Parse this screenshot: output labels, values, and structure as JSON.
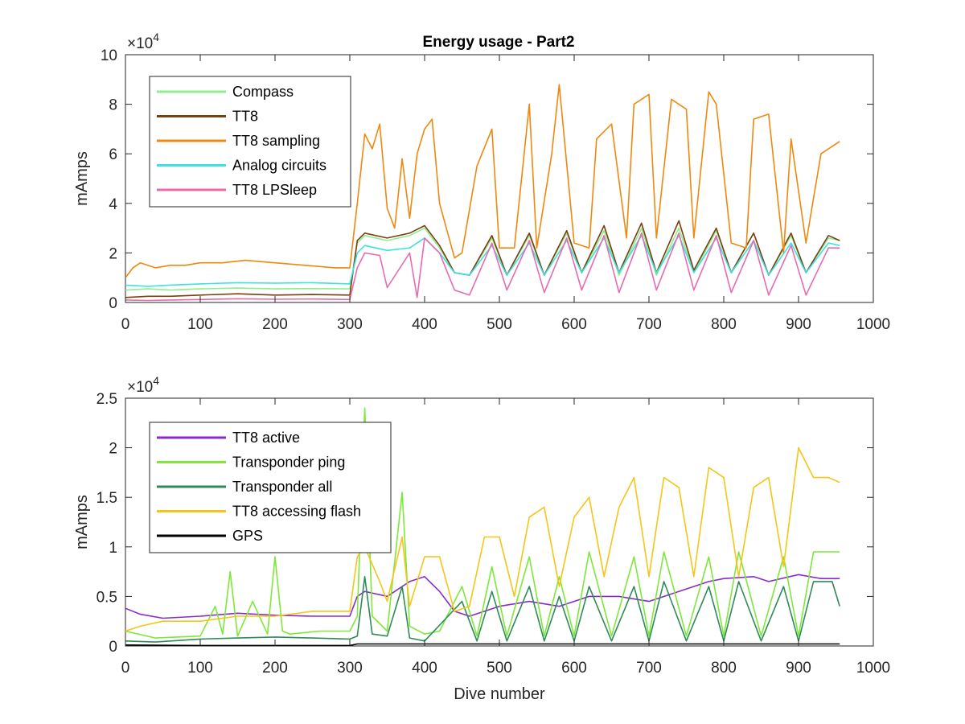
{
  "figure": {
    "title": "Energy usage - Part2"
  },
  "chart_data": [
    {
      "type": "line",
      "title": "Energy usage - Part2",
      "xlabel": "",
      "ylabel": "mAmps",
      "xlim": [
        0,
        1000
      ],
      "ylim": [
        0,
        100000
      ],
      "xticks": [
        0,
        100,
        200,
        300,
        400,
        500,
        600,
        700,
        800,
        900,
        1000
      ],
      "xtick_labels": [
        "0",
        "100",
        "200",
        "300",
        "400",
        "500",
        "600",
        "700",
        "800",
        "900",
        "1000"
      ],
      "yticks": [
        0,
        20000,
        40000,
        60000,
        80000,
        100000
      ],
      "ytick_labels": [
        "0",
        "2",
        "4",
        "6",
        "8",
        "10"
      ],
      "y_multiplier": "×10^4",
      "legend_position": "top-left",
      "grid": false,
      "series": [
        {
          "name": "Compass",
          "color": "#90ee90",
          "x": [
            0,
            30,
            60,
            100,
            150,
            200,
            250,
            300,
            310,
            320,
            350,
            380,
            400,
            420,
            440,
            460,
            490,
            510,
            540,
            560,
            590,
            610,
            640,
            660,
            690,
            710,
            740,
            760,
            790,
            810,
            840,
            860,
            890,
            910,
            940,
            955
          ],
          "values": [
            5000,
            5500,
            5000,
            5500,
            5800,
            5500,
            5600,
            5500,
            24000,
            27000,
            25000,
            27000,
            30000,
            22000,
            12000,
            11000,
            26000,
            11000,
            27000,
            11000,
            28000,
            12000,
            29000,
            11000,
            30000,
            11000,
            30000,
            12000,
            29000,
            12000,
            28000,
            11000,
            27000,
            12000,
            26000,
            25000
          ]
        },
        {
          "name": "TT8",
          "color": "#7b3f0d",
          "x": [
            0,
            30,
            60,
            100,
            150,
            200,
            250,
            300,
            310,
            320,
            350,
            380,
            400,
            420,
            440,
            460,
            490,
            510,
            540,
            560,
            590,
            610,
            640,
            660,
            690,
            710,
            740,
            760,
            790,
            810,
            840,
            860,
            890,
            910,
            940,
            955
          ],
          "values": [
            2000,
            2500,
            2500,
            3000,
            3500,
            3000,
            3200,
            3000,
            25000,
            28000,
            26000,
            28000,
            31000,
            23000,
            12000,
            11000,
            27000,
            11000,
            28000,
            11000,
            29000,
            12000,
            31000,
            12000,
            32000,
            12000,
            33000,
            13000,
            30000,
            12000,
            28000,
            11000,
            28000,
            12000,
            27000,
            25000
          ]
        },
        {
          "name": "TT8 sampling",
          "color": "#f0870f",
          "x": [
            0,
            10,
            20,
            40,
            60,
            80,
            100,
            130,
            160,
            200,
            240,
            280,
            300,
            310,
            320,
            330,
            340,
            350,
            360,
            370,
            380,
            390,
            400,
            410,
            420,
            440,
            450,
            470,
            490,
            500,
            520,
            540,
            550,
            570,
            580,
            600,
            620,
            630,
            650,
            670,
            680,
            700,
            710,
            730,
            750,
            760,
            780,
            790,
            810,
            830,
            840,
            860,
            880,
            890,
            910,
            930,
            940,
            955
          ],
          "values": [
            10000,
            14000,
            16000,
            14000,
            15000,
            15000,
            16000,
            16000,
            17000,
            16000,
            15000,
            14000,
            14000,
            40000,
            68000,
            62000,
            72000,
            38000,
            30000,
            58000,
            34000,
            60000,
            70000,
            74000,
            40000,
            18000,
            20000,
            55000,
            70000,
            22000,
            22000,
            80000,
            22000,
            60000,
            88000,
            24000,
            22000,
            66000,
            72000,
            26000,
            80000,
            84000,
            26000,
            82000,
            78000,
            26000,
            85000,
            80000,
            24000,
            22000,
            74000,
            76000,
            20000,
            66000,
            24000,
            60000,
            62000,
            65000
          ]
        },
        {
          "name": "Analog circuits",
          "color": "#3ee0e0",
          "x": [
            0,
            30,
            60,
            100,
            150,
            200,
            250,
            300,
            310,
            320,
            350,
            380,
            400,
            420,
            440,
            460,
            490,
            510,
            540,
            560,
            590,
            610,
            640,
            660,
            690,
            710,
            740,
            760,
            790,
            810,
            840,
            860,
            890,
            910,
            940,
            955
          ],
          "values": [
            7000,
            6500,
            7000,
            7500,
            8000,
            7800,
            8000,
            7500,
            20000,
            23000,
            21000,
            22000,
            26000,
            20000,
            12000,
            11000,
            23000,
            11000,
            24000,
            11000,
            25000,
            12000,
            26000,
            12000,
            27000,
            12000,
            27000,
            12000,
            26000,
            12000,
            25000,
            11000,
            24000,
            12000,
            24000,
            23000
          ]
        },
        {
          "name": "TT8 LPSleep",
          "color": "#e86bb0",
          "x": [
            0,
            30,
            60,
            100,
            150,
            200,
            250,
            300,
            310,
            320,
            340,
            350,
            380,
            390,
            400,
            420,
            440,
            460,
            490,
            510,
            540,
            560,
            590,
            610,
            640,
            660,
            690,
            710,
            740,
            760,
            790,
            810,
            840,
            860,
            890,
            910,
            940,
            955
          ],
          "values": [
            1000,
            800,
            1000,
            1200,
            1500,
            1300,
            1400,
            1200,
            14000,
            20000,
            19000,
            6000,
            20000,
            2000,
            26000,
            20000,
            5000,
            3000,
            24000,
            5000,
            25000,
            4000,
            26000,
            5000,
            27000,
            4000,
            28000,
            5000,
            28000,
            5000,
            27000,
            4000,
            25000,
            3000,
            23000,
            3000,
            22000,
            22000
          ]
        }
      ]
    },
    {
      "type": "line",
      "title": "",
      "xlabel": "Dive number",
      "ylabel": "mAmps",
      "xlim": [
        0,
        1000
      ],
      "ylim": [
        0,
        25000
      ],
      "xticks": [
        0,
        100,
        200,
        300,
        400,
        500,
        600,
        700,
        800,
        900,
        1000
      ],
      "xtick_labels": [
        "0",
        "100",
        "200",
        "300",
        "400",
        "500",
        "600",
        "700",
        "800",
        "900",
        "1000"
      ],
      "yticks": [
        0,
        5000,
        10000,
        15000,
        20000,
        25000
      ],
      "ytick_labels": [
        "0",
        "0.5",
        "1",
        "1.5",
        "2",
        "2.5"
      ],
      "y_multiplier": "×10^4",
      "legend_position": "top-left",
      "grid": false,
      "series": [
        {
          "name": "TT8 active",
          "color": "#8a2bc8",
          "x": [
            0,
            20,
            50,
            100,
            150,
            200,
            250,
            300,
            310,
            320,
            350,
            380,
            400,
            420,
            440,
            460,
            500,
            540,
            580,
            620,
            660,
            700,
            740,
            780,
            800,
            840,
            860,
            900,
            930,
            955
          ],
          "values": [
            3800,
            3200,
            2800,
            3000,
            3300,
            3100,
            3000,
            3000,
            5000,
            5500,
            5000,
            6500,
            7000,
            5500,
            3500,
            3000,
            4000,
            4500,
            4000,
            5000,
            5000,
            4500,
            5500,
            6500,
            6800,
            7000,
            6500,
            7200,
            6800,
            6800
          ]
        },
        {
          "name": "Transponder ping",
          "color": "#7ee83a",
          "x": [
            0,
            40,
            100,
            120,
            130,
            140,
            150,
            170,
            190,
            200,
            210,
            220,
            260,
            300,
            310,
            320,
            330,
            350,
            370,
            380,
            400,
            420,
            450,
            470,
            490,
            510,
            540,
            560,
            580,
            600,
            620,
            650,
            680,
            700,
            720,
            750,
            780,
            800,
            820,
            850,
            880,
            900,
            920,
            945,
            955
          ],
          "values": [
            1500,
            800,
            1000,
            4000,
            1200,
            7500,
            1000,
            4500,
            1200,
            9000,
            1500,
            1200,
            1500,
            1500,
            3000,
            24000,
            3000,
            1500,
            15500,
            2000,
            1200,
            1500,
            6000,
            1000,
            8000,
            1000,
            9000,
            1000,
            7000,
            1000,
            9500,
            1000,
            9000,
            1000,
            9500,
            1000,
            9000,
            1000,
            9500,
            1000,
            9000,
            1000,
            9500,
            9500,
            9500
          ]
        },
        {
          "name": "Transponder all",
          "color": "#2e8b57",
          "x": [
            0,
            40,
            100,
            150,
            200,
            250,
            300,
            310,
            320,
            330,
            350,
            370,
            380,
            400,
            450,
            470,
            490,
            510,
            540,
            560,
            580,
            600,
            620,
            650,
            680,
            700,
            720,
            750,
            780,
            800,
            820,
            850,
            880,
            900,
            920,
            945,
            955
          ],
          "values": [
            500,
            400,
            700,
            800,
            900,
            800,
            700,
            1000,
            7000,
            1200,
            1000,
            6000,
            800,
            500,
            4500,
            500,
            5500,
            500,
            6000,
            500,
            5000,
            500,
            6000,
            500,
            6000,
            500,
            6500,
            500,
            6000,
            500,
            6500,
            500,
            6000,
            500,
            6500,
            6500,
            4000
          ]
        },
        {
          "name": "TT8 accessing flash",
          "color": "#f5c518",
          "x": [
            0,
            20,
            50,
            100,
            150,
            200,
            250,
            300,
            310,
            320,
            340,
            350,
            370,
            380,
            400,
            420,
            440,
            460,
            480,
            500,
            520,
            540,
            560,
            580,
            600,
            620,
            640,
            660,
            680,
            700,
            720,
            740,
            760,
            780,
            800,
            820,
            840,
            860,
            880,
            900,
            920,
            940,
            955
          ],
          "values": [
            1500,
            2000,
            2500,
            2500,
            3000,
            3000,
            3500,
            3500,
            9000,
            10000,
            6500,
            4500,
            11000,
            4000,
            9000,
            9000,
            3500,
            4000,
            11000,
            11000,
            5000,
            13000,
            14000,
            6000,
            13000,
            15000,
            7000,
            14000,
            17000,
            7000,
            17000,
            16000,
            7000,
            18000,
            17000,
            7000,
            16000,
            17000,
            8000,
            20000,
            17000,
            17000,
            16500
          ]
        },
        {
          "name": "GPS",
          "color": "#000000",
          "x": [
            0,
            100,
            200,
            300,
            310,
            400,
            500,
            600,
            700,
            800,
            900,
            955
          ],
          "values": [
            100,
            50,
            50,
            50,
            200,
            200,
            200,
            200,
            200,
            200,
            200,
            200
          ]
        }
      ]
    }
  ]
}
